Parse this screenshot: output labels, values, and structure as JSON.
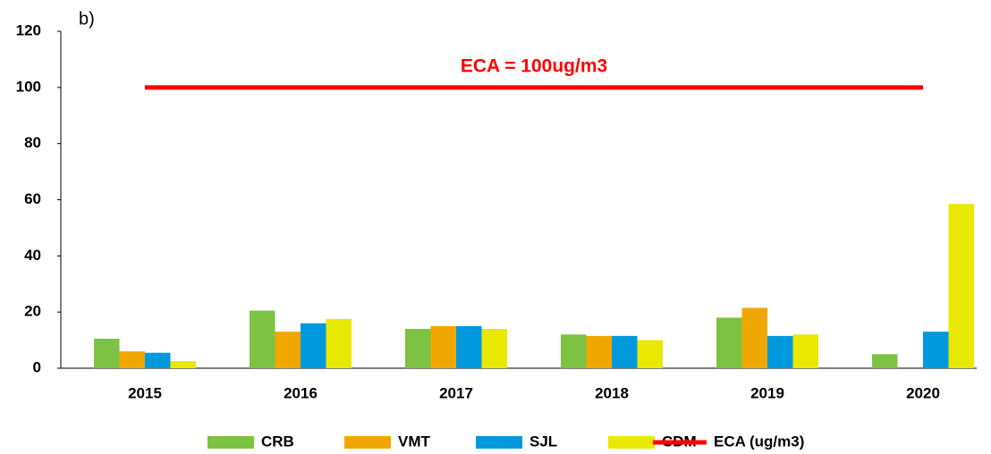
{
  "chart_data": {
    "type": "bar",
    "panel_label": "b)",
    "annotation": "ECA = 100ug/m3",
    "categories": [
      "2015",
      "2016",
      "2017",
      "2018",
      "2019",
      "2020"
    ],
    "series": [
      {
        "name": "CRB",
        "color": "#7dc242",
        "values": [
          10.5,
          20.5,
          14,
          12,
          18,
          5
        ]
      },
      {
        "name": "VMT",
        "color": "#f0a800",
        "values": [
          6,
          13,
          15,
          11.5,
          21.5,
          null
        ]
      },
      {
        "name": "SJL",
        "color": "#0099dd",
        "values": [
          5.5,
          16,
          15,
          11.5,
          11.5,
          13
        ]
      },
      {
        "name": "CDM",
        "color": "#e8e800",
        "values": [
          2.5,
          17.5,
          14,
          10,
          12,
          58.5
        ]
      },
      {
        "name": "ECA (ug/m3)",
        "type": "line",
        "color": "#ff0000",
        "values": [
          100,
          100,
          100,
          100,
          100,
          100
        ]
      }
    ],
    "ylim": [
      0,
      120
    ],
    "yticks": [
      0,
      20,
      40,
      60,
      80,
      100,
      120
    ],
    "grid": false,
    "legend": "bottom"
  }
}
